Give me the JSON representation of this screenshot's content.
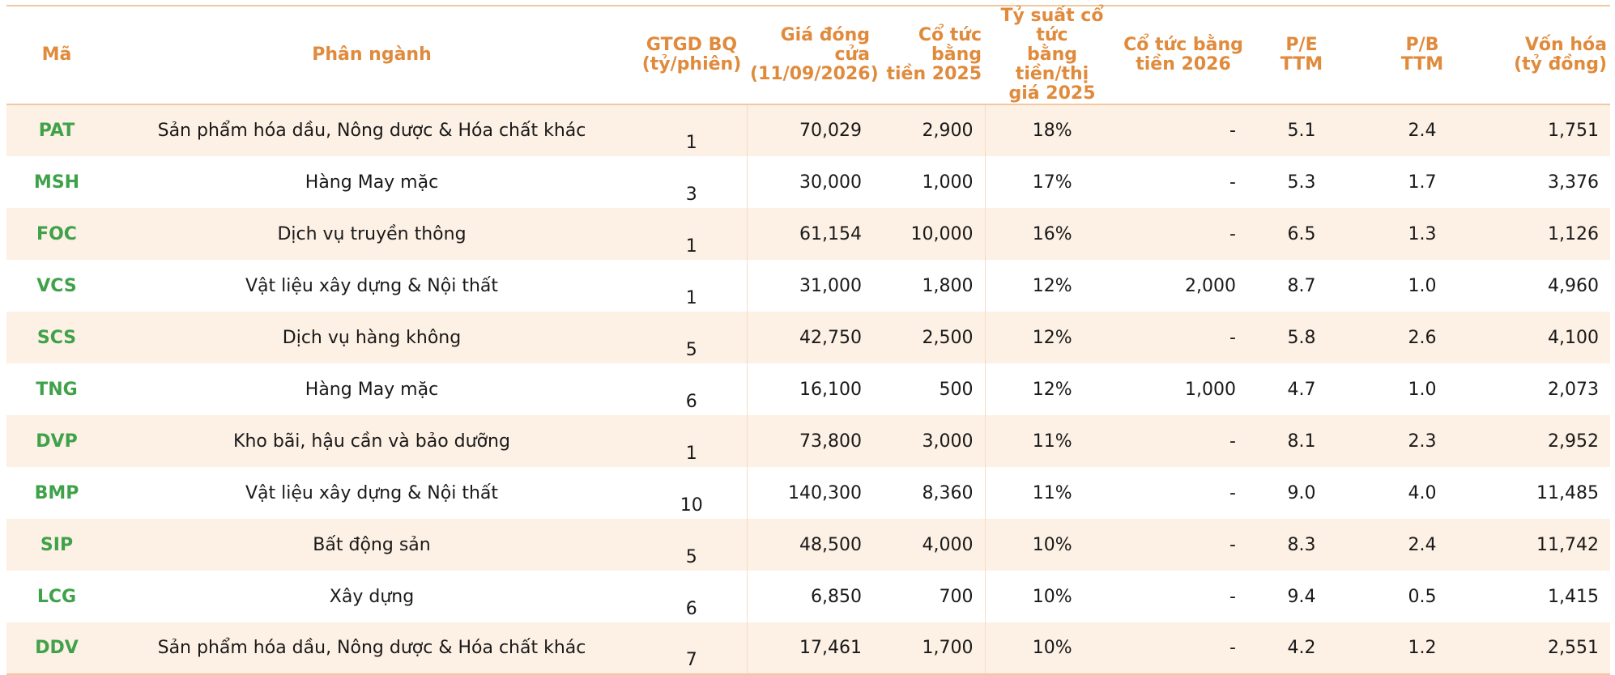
{
  "headers": {
    "code": "Mã",
    "sector": "Phân ngành",
    "avg_volume": [
      "GTGD BQ",
      "(tỷ/phiên)"
    ],
    "close_price": [
      "Giá đóng cửa",
      "(11/09/2026)"
    ],
    "div_2025": [
      "Cổ tức bằng",
      "tiền 2025"
    ],
    "yield_2025": [
      "Tỷ suất cổ tức",
      "bằng tiền/thị",
      "giá 2025"
    ],
    "div_2026": [
      "Cổ tức bằng",
      "tiền 2026"
    ],
    "pe": [
      "P/E",
      "TTM"
    ],
    "pb": [
      "P/B",
      "TTM"
    ],
    "market_cap": [
      "Vốn hóa",
      "(tỷ đồng)"
    ]
  },
  "rows": [
    {
      "code": "PAT",
      "sector": "Sản phẩm hóa dầu, Nông dược & Hóa chất khác",
      "avg_volume": "1",
      "close_price": "70,029",
      "div_2025": "2,900",
      "yield_2025": "18%",
      "div_2026": "-",
      "pe": "5.1",
      "pb": "2.4",
      "market_cap": "1,751"
    },
    {
      "code": "MSH",
      "sector": "Hàng May mặc",
      "avg_volume": "3",
      "close_price": "30,000",
      "div_2025": "1,000",
      "yield_2025": "17%",
      "div_2026": "-",
      "pe": "5.3",
      "pb": "1.7",
      "market_cap": "3,376"
    },
    {
      "code": "FOC",
      "sector": "Dịch vụ truyền thông",
      "avg_volume": "1",
      "close_price": "61,154",
      "div_2025": "10,000",
      "yield_2025": "16%",
      "div_2026": "-",
      "pe": "6.5",
      "pb": "1.3",
      "market_cap": "1,126"
    },
    {
      "code": "VCS",
      "sector": "Vật liệu xây dựng & Nội thất",
      "avg_volume": "1",
      "close_price": "31,000",
      "div_2025": "1,800",
      "yield_2025": "12%",
      "div_2026": "2,000",
      "pe": "8.7",
      "pb": "1.0",
      "market_cap": "4,960"
    },
    {
      "code": "SCS",
      "sector": "Dịch vụ hàng không",
      "avg_volume": "5",
      "close_price": "42,750",
      "div_2025": "2,500",
      "yield_2025": "12%",
      "div_2026": "-",
      "pe": "5.8",
      "pb": "2.6",
      "market_cap": "4,100"
    },
    {
      "code": "TNG",
      "sector": "Hàng May mặc",
      "avg_volume": "6",
      "close_price": "16,100",
      "div_2025": "500",
      "yield_2025": "12%",
      "div_2026": "1,000",
      "pe": "4.7",
      "pb": "1.0",
      "market_cap": "2,073"
    },
    {
      "code": "DVP",
      "sector": "Kho bãi, hậu cần và bảo dưỡng",
      "avg_volume": "1",
      "close_price": "73,800",
      "div_2025": "3,000",
      "yield_2025": "11%",
      "div_2026": "-",
      "pe": "8.1",
      "pb": "2.3",
      "market_cap": "2,952"
    },
    {
      "code": "BMP",
      "sector": "Vật liệu xây dựng & Nội thất",
      "avg_volume": "10",
      "close_price": "140,300",
      "div_2025": "8,360",
      "yield_2025": "11%",
      "div_2026": "-",
      "pe": "9.0",
      "pb": "4.0",
      "market_cap": "11,485"
    },
    {
      "code": "SIP",
      "sector": "Bất động sản",
      "avg_volume": "5",
      "close_price": "48,500",
      "div_2025": "4,000",
      "yield_2025": "10%",
      "div_2026": "-",
      "pe": "8.3",
      "pb": "2.4",
      "market_cap": "11,742"
    },
    {
      "code": "LCG",
      "sector": "Xây dựng",
      "avg_volume": "6",
      "close_price": "6,850",
      "div_2025": "700",
      "yield_2025": "10%",
      "div_2026": "-",
      "pe": "9.4",
      "pb": "0.5",
      "market_cap": "1,415"
    },
    {
      "code": "DDV",
      "sector": "Sản phẩm hóa dầu, Nông dược & Hóa chất khác",
      "avg_volume": "7",
      "close_price": "17,461",
      "div_2025": "1,700",
      "yield_2025": "10%",
      "div_2026": "-",
      "pe": "4.2",
      "pb": "1.2",
      "market_cap": "2,551"
    }
  ],
  "colors": {
    "header_text": "#e08a3c",
    "code_text": "#3fa24a",
    "row_band": "#fdf0e4",
    "rule": "#f1c9a0"
  }
}
